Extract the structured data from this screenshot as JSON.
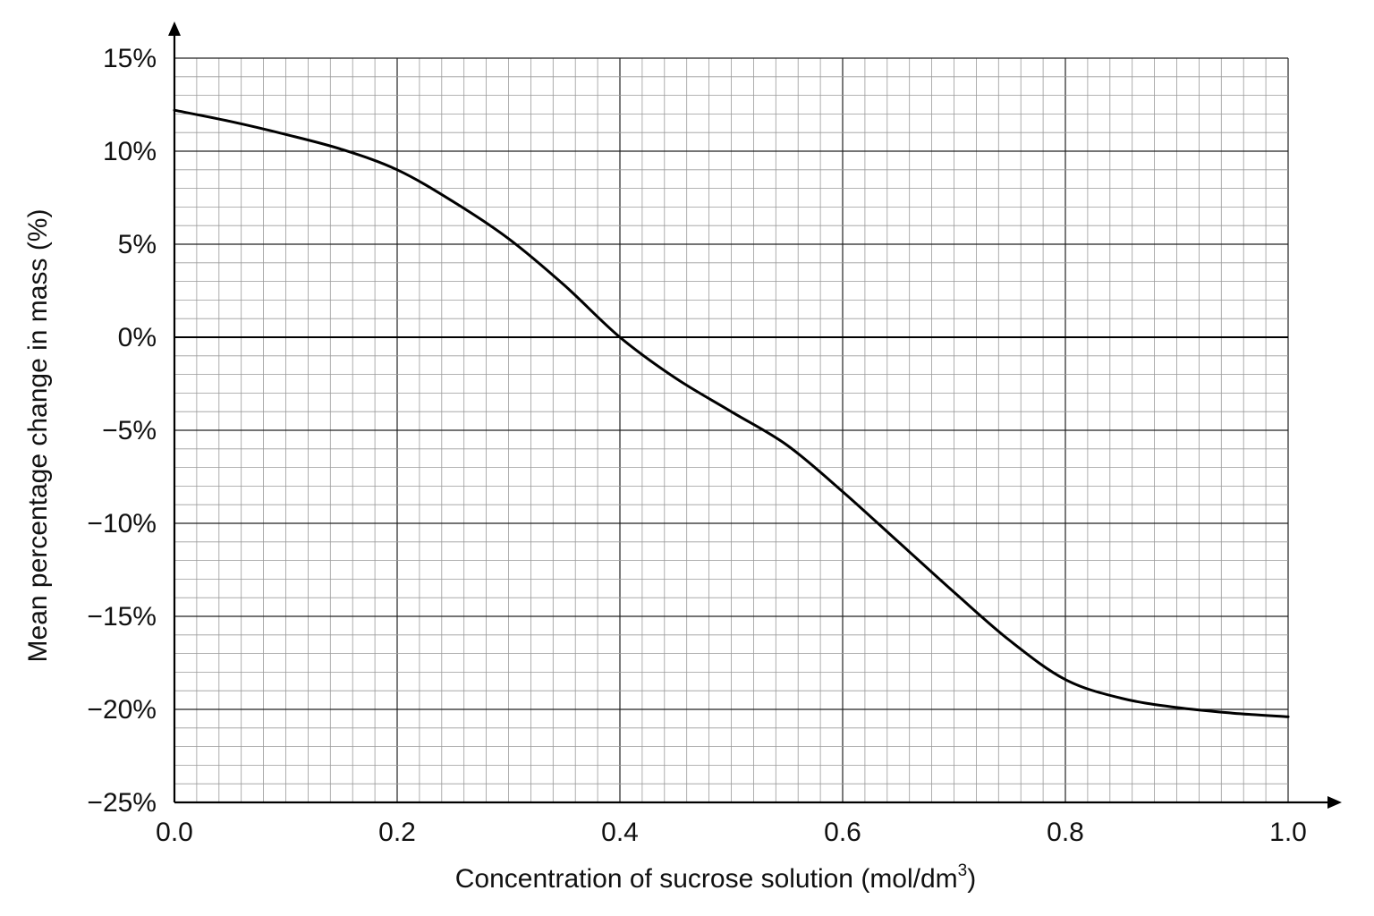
{
  "chart_data": {
    "type": "line",
    "title": "",
    "xlabel": "Concentration of sucrose solution (mol/dm",
    "xlabel_sup": "3",
    "xlabel_end": ")",
    "ylabel": "Mean percentage change in mass (%)",
    "xlim": [
      0.0,
      1.0
    ],
    "ylim": [
      -25,
      15
    ],
    "x_ticks": [
      "0.0",
      "0.2",
      "0.4",
      "0.6",
      "0.8",
      "1.0"
    ],
    "y_ticks": [
      "15%",
      "10%",
      "5%",
      "0%",
      "−5%",
      "−10%",
      "−15%",
      "−20%",
      "−25%"
    ],
    "grid": true,
    "series": [
      {
        "x": [
          0.0,
          0.05,
          0.1,
          0.15,
          0.2,
          0.25,
          0.3,
          0.35,
          0.4,
          0.45,
          0.5,
          0.55,
          0.6,
          0.65,
          0.7,
          0.75,
          0.8,
          0.85,
          0.9,
          0.95,
          1.0
        ],
        "values": [
          12.2,
          11.6,
          10.9,
          10.1,
          9.0,
          7.3,
          5.3,
          2.8,
          0.0,
          -2.2,
          -4.0,
          -5.8,
          -8.3,
          -11.0,
          -13.7,
          -16.3,
          -18.4,
          -19.4,
          -19.9,
          -20.2,
          -20.4
        ]
      }
    ]
  }
}
